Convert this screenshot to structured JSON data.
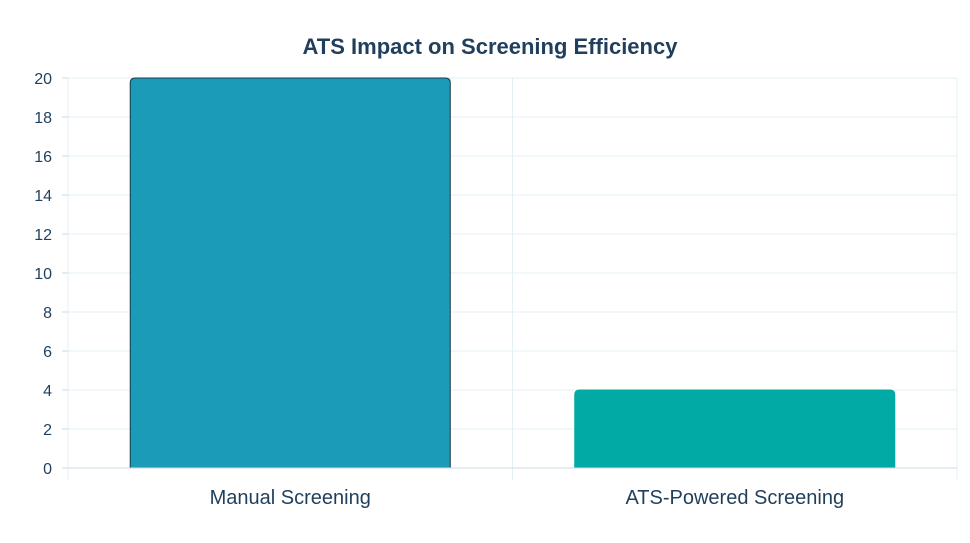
{
  "chart_data": {
    "type": "bar",
    "title": "ATS Impact on Screening Efficiency",
    "xlabel": "",
    "ylabel": "",
    "categories": [
      "Manual Screening",
      "ATS-Powered Screening"
    ],
    "values": [
      20,
      4
    ],
    "ylim": [
      0,
      20
    ],
    "yticks": [
      "0",
      "2",
      "4",
      "6",
      "8",
      "10",
      "12",
      "14",
      "16",
      "18",
      "20"
    ],
    "grid": true,
    "legend": "none"
  },
  "colors": {
    "title": "#1f3f5c",
    "tick_text": "#1f3f5c",
    "grid": "#e3f1f5",
    "axis": "#c9dde4",
    "bars": [
      "#1c9bb9",
      "#02aaa5"
    ],
    "bar_borders": [
      "#17394d",
      "#02aaa5"
    ]
  }
}
